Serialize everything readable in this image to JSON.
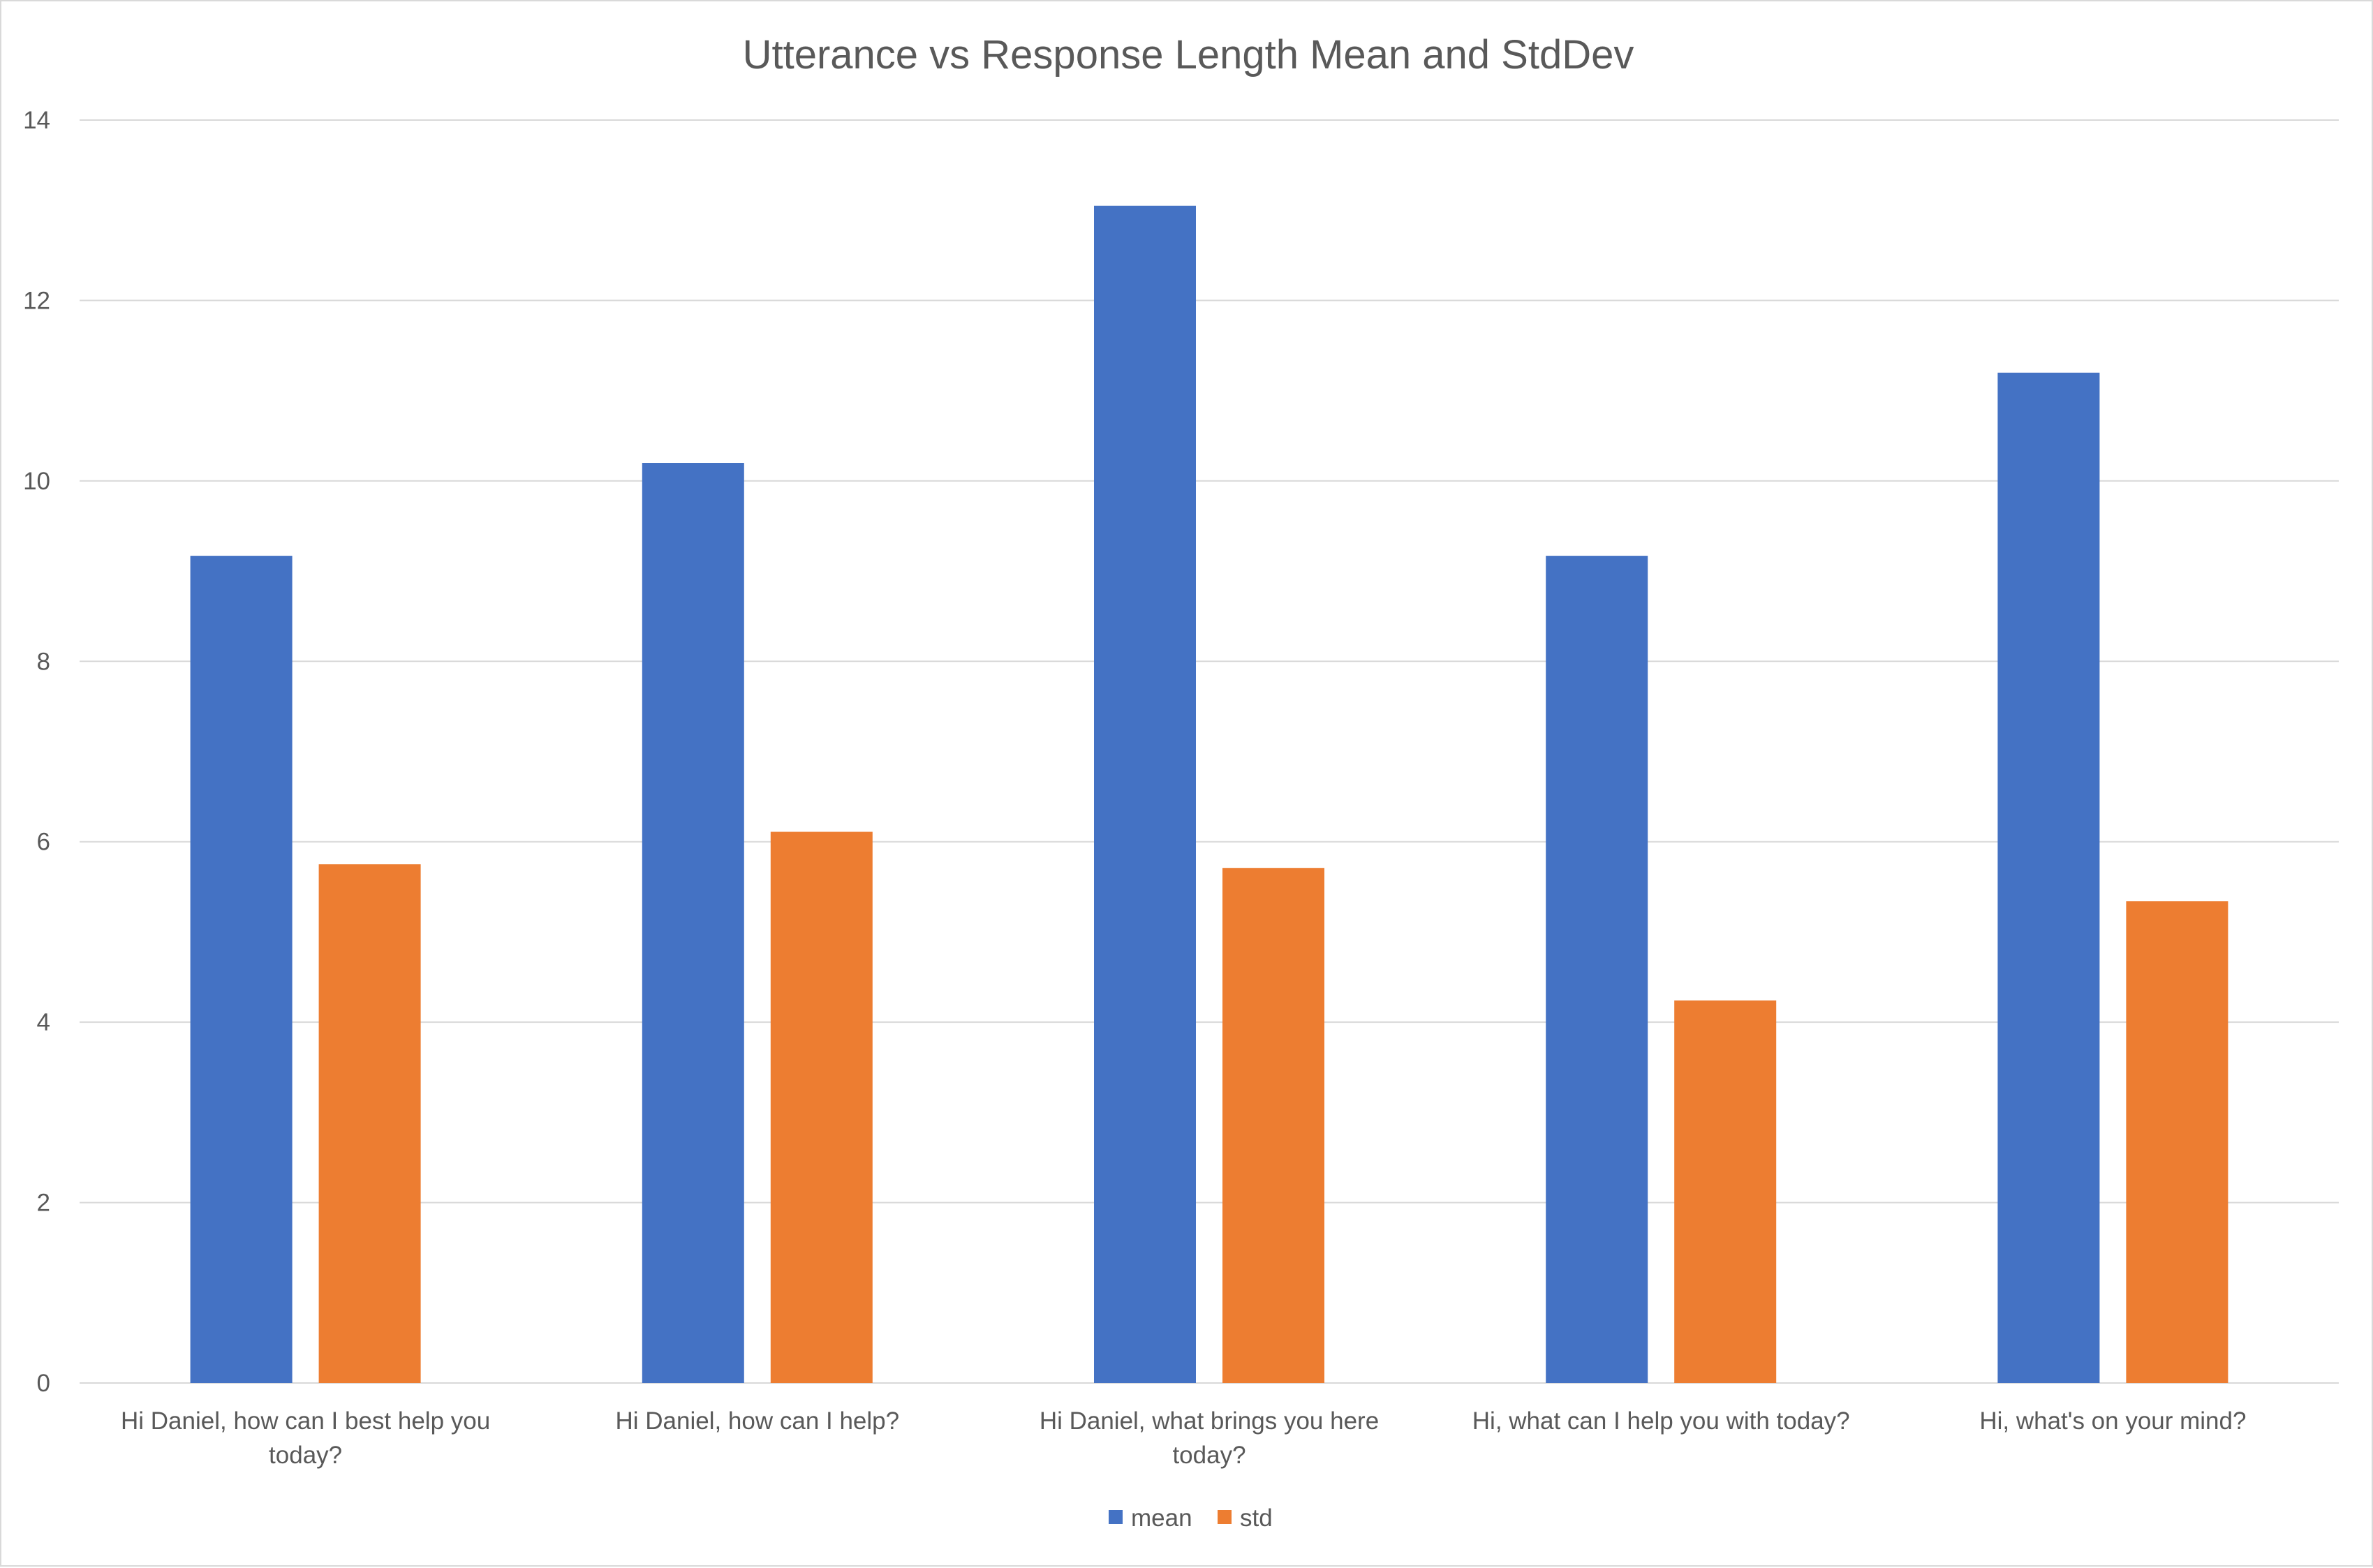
{
  "chart_data": {
    "type": "bar",
    "title": "Utterance vs Response Length Mean and StdDev",
    "xlabel": "",
    "ylabel": "",
    "ylim": [
      0,
      14
    ],
    "yticks": [
      0,
      2,
      4,
      6,
      8,
      10,
      12,
      14
    ],
    "ytick_labels": [
      "0",
      "2",
      "4",
      "6",
      "8",
      "10",
      "12",
      "14"
    ],
    "grid": true,
    "legend_position": "bottom",
    "categories": [
      "Hi Daniel, how can I best help you today?",
      "Hi Daniel, how can I help?",
      "Hi Daniel, what brings you here today?",
      "Hi, what can I help you with today?",
      "Hi, what's on your mind?"
    ],
    "category_label_lines": [
      [
        "Hi Daniel, how can I best help you",
        "today?"
      ],
      [
        "Hi Daniel, how can I help?"
      ],
      [
        "Hi Daniel, what brings you here",
        "today?"
      ],
      [
        "Hi, what can I help you with today?"
      ],
      [
        "Hi, what's on your mind?"
      ]
    ],
    "series": [
      {
        "name": "mean",
        "color": "#4472c4",
        "values": [
          9.17,
          10.2,
          13.05,
          9.17,
          11.2
        ]
      },
      {
        "name": "std",
        "color": "#ed7d31",
        "values": [
          5.75,
          6.11,
          5.71,
          4.24,
          5.34
        ]
      }
    ]
  }
}
